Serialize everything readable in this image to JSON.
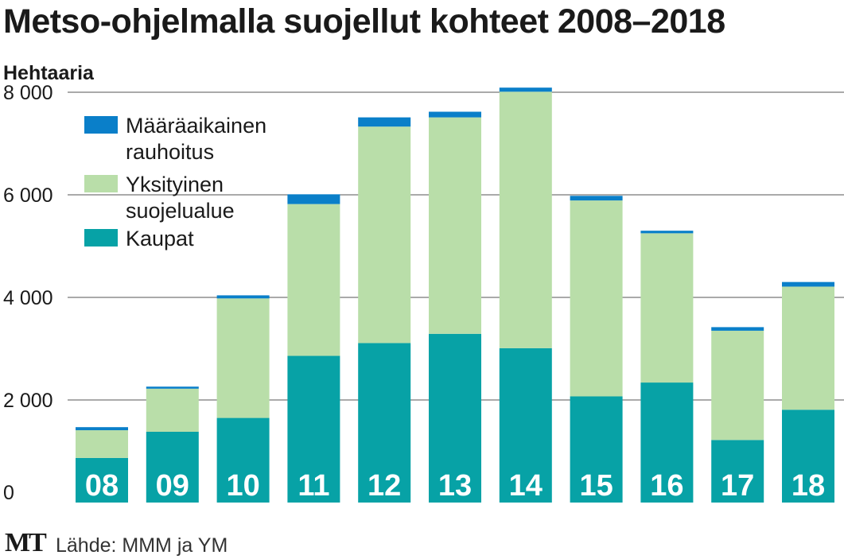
{
  "title": "Metso-ohjelmalla suojellut kohteet 2008–2018",
  "source": "Lähde: MMM ja YM",
  "logo": "MT",
  "colors": {
    "maaraaikainen": "#0a7fc9",
    "yksityinen": "#b9dea9",
    "kaupat": "#07a2a6",
    "grid": "#555555",
    "text": "#1a1a1a"
  },
  "chart_data": {
    "type": "bar",
    "stacked": true,
    "ylabel": "Hehtaaria",
    "ylim": [
      0,
      8000
    ],
    "yticks": [
      0,
      2000,
      4000,
      6000,
      8000
    ],
    "ytick_labels": [
      "0",
      "2 000",
      "4 000",
      "6 000",
      "8 000"
    ],
    "categories": [
      "08",
      "09",
      "10",
      "11",
      "12",
      "13",
      "14",
      "15",
      "16",
      "17",
      "18"
    ],
    "legend_position": "top-left",
    "series": [
      {
        "name": "Kaupat",
        "key": "kaupat",
        "values": [
          870,
          1380,
          1650,
          2860,
          3110,
          3290,
          3010,
          2070,
          2340,
          1220,
          1810
        ]
      },
      {
        "name": "Yksityinen suojelualue",
        "key": "yksityinen",
        "values": [
          540,
          840,
          2330,
          2960,
          4220,
          4220,
          5000,
          3820,
          2910,
          2130,
          2400
        ]
      },
      {
        "name": "Määräaikainen rauhoitus",
        "key": "maaraaikainen",
        "values": [
          60,
          40,
          60,
          190,
          180,
          110,
          80,
          90,
          50,
          70,
          90
        ]
      }
    ],
    "legend_order": [
      "maaraaikainen",
      "yksityinen",
      "kaupat"
    ]
  }
}
